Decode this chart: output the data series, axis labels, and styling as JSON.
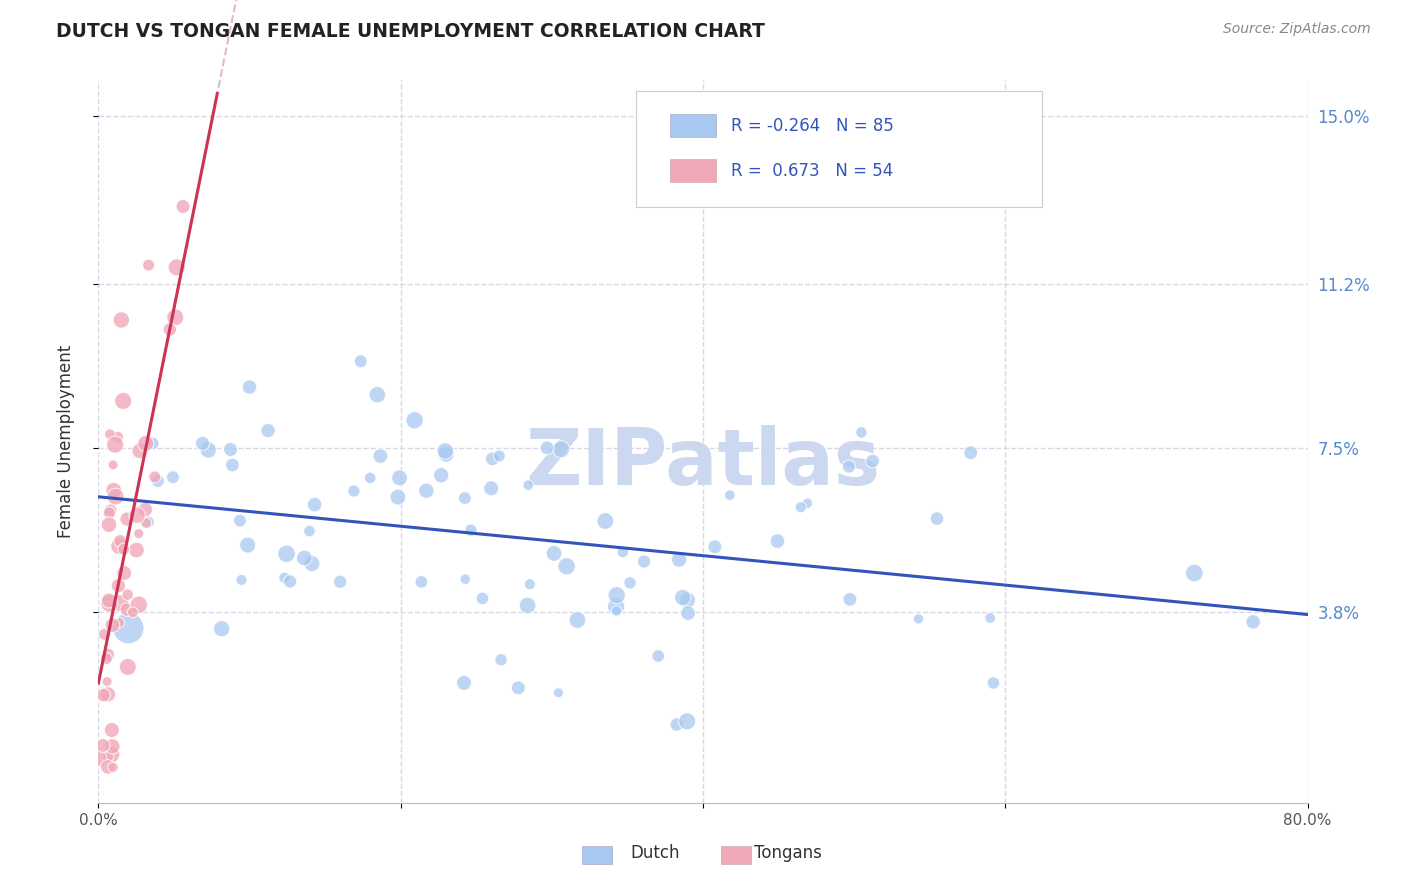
{
  "title": "DUTCH VS TONGAN FEMALE UNEMPLOYMENT CORRELATION CHART",
  "source": "Source: ZipAtlas.com",
  "ylabel": "Female Unemployment",
  "xlim": [
    0.0,
    0.8
  ],
  "ylim": [
    -0.005,
    0.158
  ],
  "ytick_values": [
    0.038,
    0.075,
    0.112,
    0.15
  ],
  "ytick_labels": [
    "3.8%",
    "7.5%",
    "11.2%",
    "15.0%"
  ],
  "grid_color": "#d8d8e8",
  "dutch_color": "#a8c8f0",
  "tongan_color": "#f0a8b8",
  "trend_dutch_color": "#3355bb",
  "trend_tongan_color": "#cc3355",
  "trend_dashed_color": "#ddaaaa",
  "watermark_color": "#ccd8f0",
  "background_color": "#ffffff",
  "legend_box_color": "#ffffff",
  "legend_border_color": "#cccccc",
  "legend_text_color": "#3355bb",
  "title_color": "#222222",
  "source_color": "#888888",
  "ylabel_color": "#333333",
  "xtick_color": "#555555",
  "ytick_right_color": "#5588cc"
}
